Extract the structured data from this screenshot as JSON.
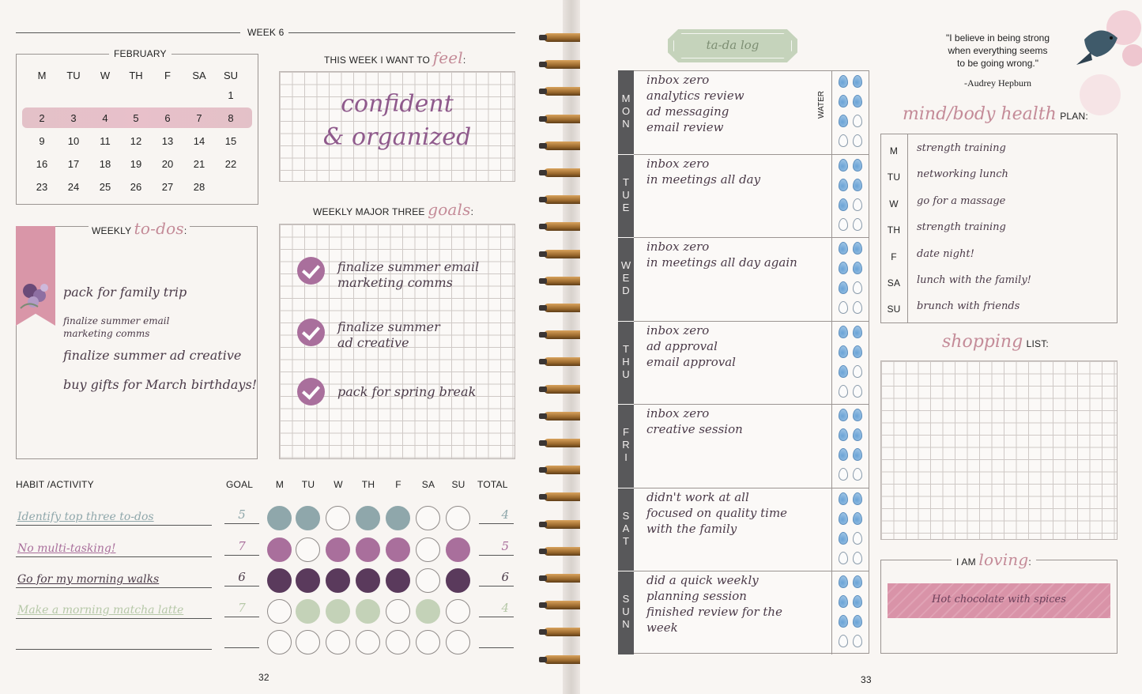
{
  "left_page": {
    "week_label": "WEEK 6",
    "page_number": "32",
    "calendar": {
      "month": "FEBRUARY",
      "weekdays": [
        "M",
        "TU",
        "W",
        "TH",
        "F",
        "SA",
        "SU"
      ],
      "rows": [
        [
          "",
          "",
          "",
          "",
          "",
          "",
          "1"
        ],
        [
          "2",
          "3",
          "4",
          "5",
          "6",
          "7",
          "8"
        ],
        [
          "9",
          "10",
          "11",
          "12",
          "13",
          "14",
          "15"
        ],
        [
          "16",
          "17",
          "18",
          "19",
          "20",
          "21",
          "22"
        ],
        [
          "23",
          "24",
          "25",
          "26",
          "27",
          "28",
          ""
        ]
      ]
    },
    "feel": {
      "label": "THIS WEEK I WANT TO",
      "script_word": "feel",
      "colon": ":",
      "line1": "confident",
      "line2": "& organized"
    },
    "todos": {
      "label": "WEEKLY",
      "script_word": "to-dos",
      "colon": ":",
      "items": [
        "pack for family trip",
        "finalize summer email marketing comms",
        "finalize summer ad creative",
        "buy gifts for March birthdays!"
      ]
    },
    "goals": {
      "label": "WEEKLY MAJOR THREE",
      "script_word": "goals",
      "colon": ":",
      "items": [
        {
          "line1": "finalize summer email",
          "line2": "marketing comms"
        },
        {
          "line1": "finalize summer",
          "line2": "ad creative"
        },
        {
          "line1": "pack for spring break",
          "line2": ""
        }
      ]
    },
    "habits": {
      "headers": {
        "activity": "HABIT /ACTIVITY",
        "goal": "GOAL",
        "days": [
          "M",
          "TU",
          "W",
          "TH",
          "F",
          "SA",
          "SU"
        ],
        "total": "TOTAL"
      },
      "rows": [
        {
          "name": "Identify top three to-dos",
          "goal": "5",
          "total": "4",
          "color": "#8fa7ab",
          "filled": [
            true,
            true,
            false,
            true,
            true,
            false,
            false
          ]
        },
        {
          "name": "No multi-tasking!",
          "goal": "7",
          "total": "5",
          "color": "#a96f9c",
          "filled": [
            true,
            false,
            true,
            true,
            true,
            false,
            true
          ]
        },
        {
          "name": "Go for my morning walks",
          "goal": "6",
          "total": "6",
          "color": "#5a3a5c",
          "filled": [
            true,
            true,
            true,
            true,
            true,
            false,
            true
          ]
        },
        {
          "name": "Make a morning matcha latte",
          "goal": "7",
          "total": "4",
          "color": "#c4d2b8",
          "filled": [
            false,
            true,
            true,
            true,
            false,
            true,
            false
          ]
        },
        {
          "name": "",
          "goal": "",
          "total": "",
          "color": "#ffffff",
          "filled": [
            false,
            false,
            false,
            false,
            false,
            false,
            false
          ]
        }
      ]
    }
  },
  "right_page": {
    "page_number": "33",
    "tada_label": "ta-da log",
    "water_label": "WATER",
    "days": [
      {
        "letters": [
          "M",
          "O",
          "N"
        ],
        "lines": [
          "inbox zero",
          "analytics review",
          "ad messaging",
          "email review"
        ],
        "water_filled": 5
      },
      {
        "letters": [
          "T",
          "U",
          "E"
        ],
        "lines": [
          "inbox zero",
          "in meetings all day"
        ],
        "water_filled": 5
      },
      {
        "letters": [
          "W",
          "E",
          "D"
        ],
        "lines": [
          "inbox zero",
          "in meetings all day again"
        ],
        "water_filled": 5
      },
      {
        "letters": [
          "T",
          "H",
          "U"
        ],
        "lines": [
          "inbox zero",
          "ad approval",
          "email approval"
        ],
        "water_filled": 5
      },
      {
        "letters": [
          "F",
          "R",
          "I"
        ],
        "lines": [
          "inbox zero",
          "creative session"
        ],
        "water_filled": 6
      },
      {
        "letters": [
          "S",
          "A",
          "T"
        ],
        "lines": [
          "didn't work at all",
          "focused on quality time",
          "with the family"
        ],
        "water_filled": 5
      },
      {
        "letters": [
          "S",
          "U",
          "N"
        ],
        "lines": [
          "did a quick weekly",
          "planning session",
          "finished review for the",
          "week"
        ],
        "water_filled": 6
      }
    ],
    "quote": {
      "line1": "\"I believe in being strong",
      "line2": "when everything seems",
      "line3": "to be going wrong.\"",
      "author": "-Audrey Hepburn"
    },
    "health": {
      "script_word": "mind/body health",
      "label": "PLAN:",
      "rows": [
        {
          "day": "M",
          "plan": "strength training"
        },
        {
          "day": "TU",
          "plan": "networking lunch"
        },
        {
          "day": "W",
          "plan": "go for a massage"
        },
        {
          "day": "TH",
          "plan": "strength training"
        },
        {
          "day": "F",
          "plan": "date night!"
        },
        {
          "day": "SA",
          "plan": "lunch with the family!"
        },
        {
          "day": "SU",
          "plan": "brunch with friends"
        }
      ]
    },
    "shopping": {
      "script_word": "shopping",
      "label": "LIST:"
    },
    "loving": {
      "label": "I AM",
      "script_word": "loving",
      "colon": ":",
      "item": "Hot chocolate with spices"
    }
  },
  "colors": {
    "accent_pink": "#d996a8",
    "accent_purple": "#a96f9c",
    "tab_gray": "#58585a",
    "tada_green": "#c5d3bb"
  }
}
